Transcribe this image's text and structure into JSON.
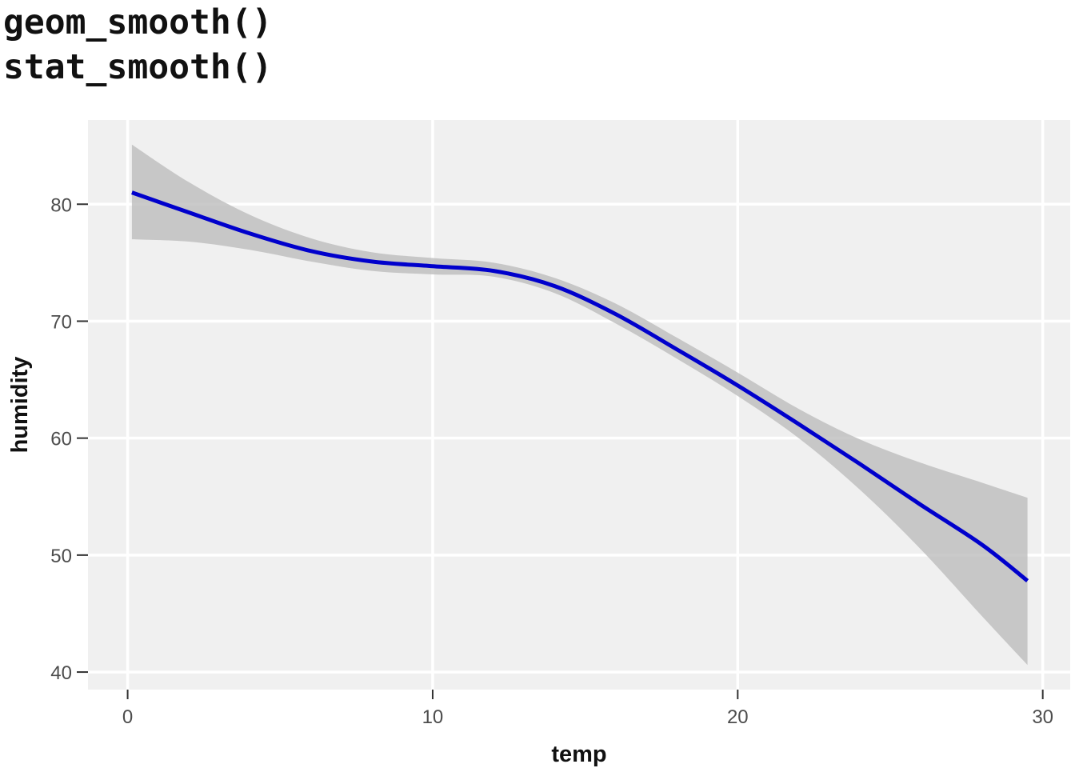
{
  "header": {
    "line1": "geom_smooth()",
    "line2": "stat_smooth()"
  },
  "chart_data": {
    "type": "line",
    "xlabel": "temp",
    "ylabel": "humidity",
    "xlim": [
      -1.3,
      30.9
    ],
    "ylim": [
      38.5,
      87.2
    ],
    "xticks": [
      0,
      10,
      20,
      30
    ],
    "yticks": [
      40,
      50,
      60,
      70,
      80
    ],
    "grid": true,
    "panel_background": "#f0f0f0",
    "grid_color": "#ffffff",
    "line_color": "#0000cc",
    "ribbon_color": "#bdbdbd",
    "series": [
      {
        "x": [
          0.14,
          2,
          4,
          6,
          8,
          10,
          12,
          14,
          16,
          18,
          20,
          22,
          24,
          26,
          28,
          29.5
        ],
        "y": [
          81.0,
          79.3,
          77.5,
          76.0,
          75.1,
          74.7,
          74.3,
          73.0,
          70.6,
          67.6,
          64.5,
          61.2,
          57.8,
          54.3,
          50.9,
          47.8
        ],
        "ymin": [
          77.0,
          76.8,
          76.1,
          75.1,
          74.3,
          74.0,
          73.8,
          72.4,
          69.8,
          66.8,
          63.6,
          60.0,
          55.6,
          50.5,
          44.8,
          40.6
        ],
        "ymax": [
          85.1,
          81.9,
          79.1,
          77.1,
          75.9,
          75.4,
          75.0,
          73.7,
          71.5,
          68.6,
          65.6,
          62.5,
          59.9,
          57.9,
          56.2,
          54.9
        ]
      }
    ]
  }
}
